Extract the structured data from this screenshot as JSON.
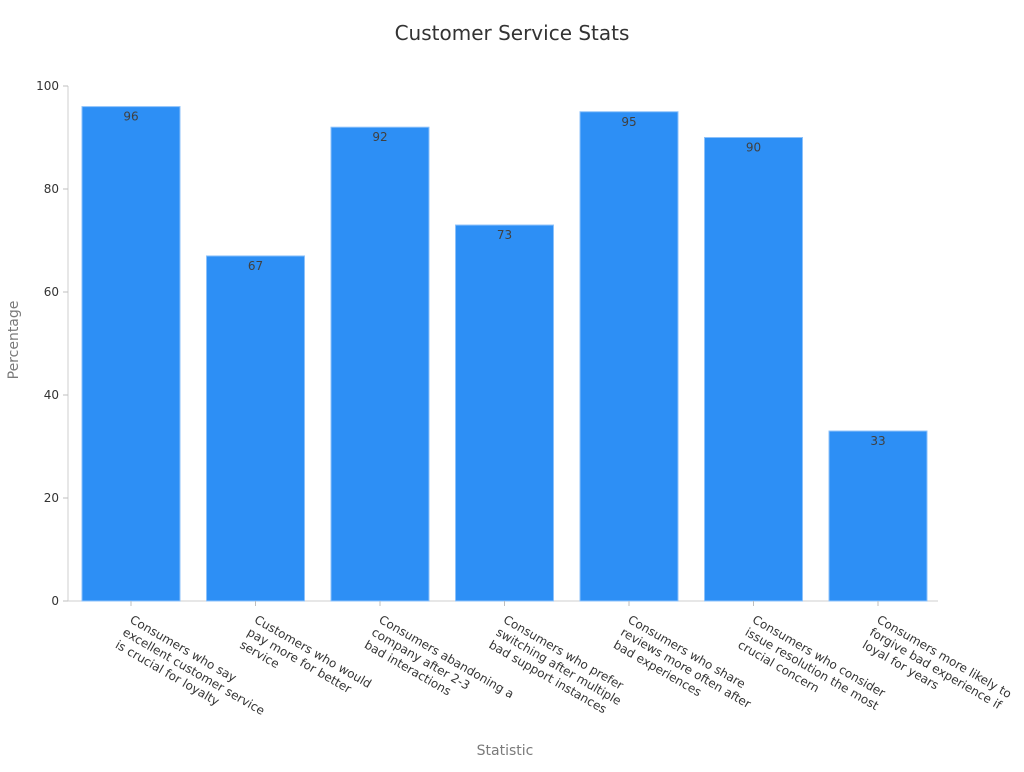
{
  "chart_data": {
    "type": "bar",
    "title": "Customer Service Stats",
    "xlabel": "Statistic",
    "ylabel": "Percentage",
    "ylim": [
      0,
      100
    ],
    "yticks": [
      "0",
      "20",
      "40",
      "60",
      "80",
      "100"
    ],
    "grid": false,
    "legend": "none",
    "bar_color": "#2d8ff5",
    "categories": [
      [
        "Consumers who say",
        "excellent customer service",
        "is crucial for loyalty"
      ],
      [
        "Customers who would",
        "pay more for better",
        "service"
      ],
      [
        "Consumers abandoning a",
        "company after 2-3",
        "bad interactions"
      ],
      [
        "Consumers who prefer",
        "switching after multiple",
        "bad support instances"
      ],
      [
        "Consumers who share",
        "reviews more often after",
        "bad experiences"
      ],
      [
        "Consumers who consider",
        "issue resolution the most",
        "crucial concern"
      ],
      [
        "Consumers more likely to",
        "forgive bad experience if",
        "loyal for years"
      ]
    ],
    "values": [
      96,
      67,
      92,
      73,
      95,
      90,
      33
    ]
  }
}
